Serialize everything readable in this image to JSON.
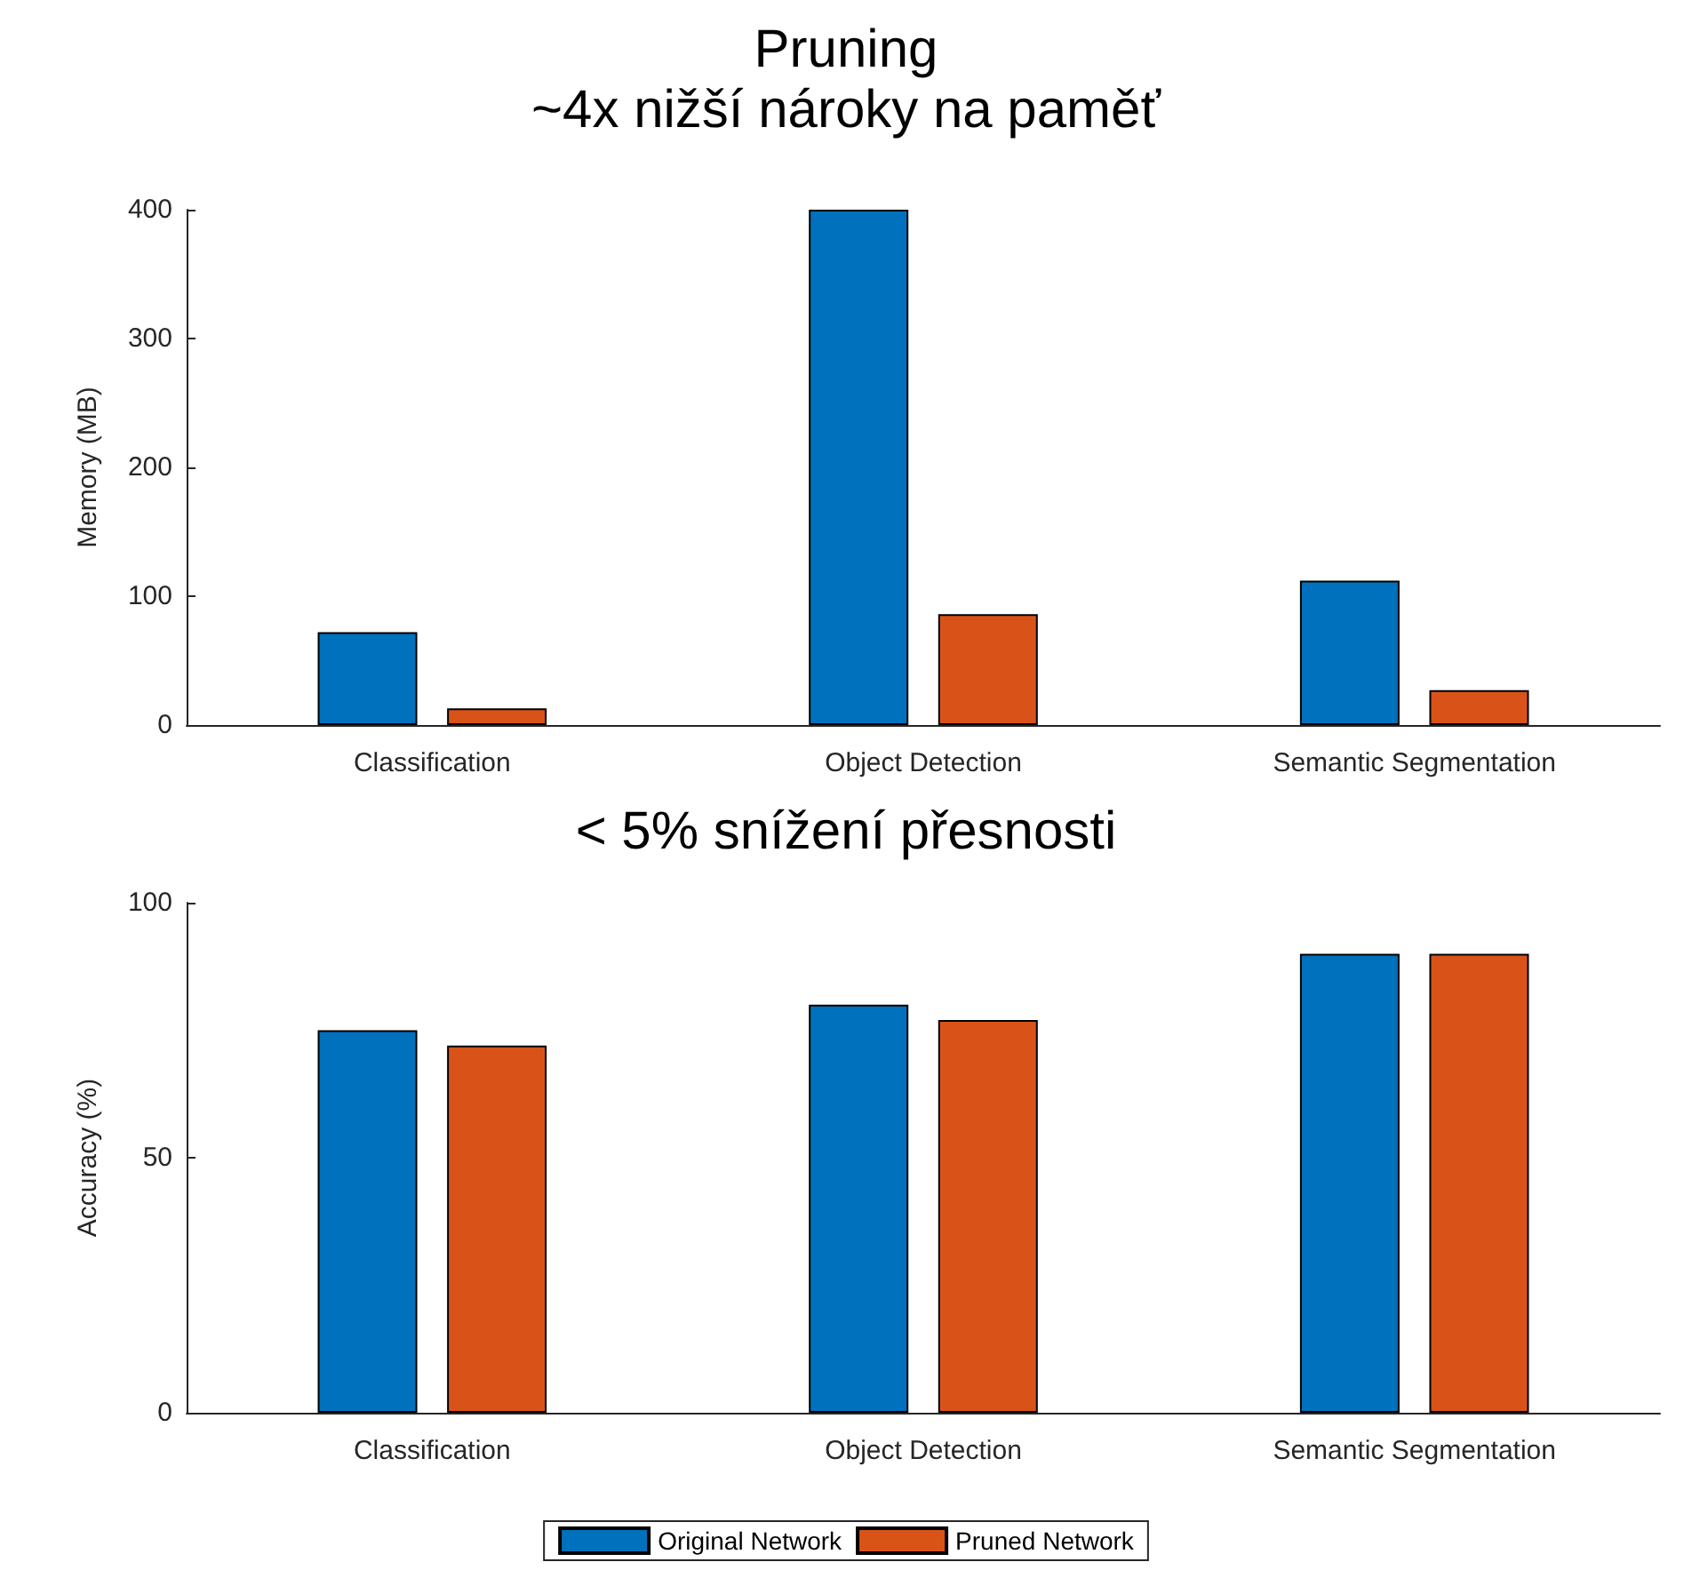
{
  "chart_data": [
    {
      "type": "bar",
      "title": "Pruning",
      "subtitle": "~4x nižší nároky na paměť",
      "ylabel": "Memory (MB)",
      "categories": [
        "Classification",
        "Object Detection",
        "Semantic Segmentation"
      ],
      "series": [
        {
          "color": "#0072bd",
          "values": [
            72,
            400,
            112
          ]
        },
        {
          "color": "#d95319",
          "values": [
            13,
            86,
            27
          ]
        }
      ],
      "ylim": [
        0,
        400
      ],
      "yticks": [
        0,
        100,
        200,
        300,
        400
      ],
      "grid": false,
      "legend": false
    },
    {
      "type": "bar",
      "title": "< 5% snížení přesnosti",
      "ylabel": "Accuracy (%)",
      "categories": [
        "Classification",
        "Object Detection",
        "Semantic Segmentation"
      ],
      "series": [
        {
          "name": "Original Network",
          "color": "#0072bd",
          "values": [
            75,
            80,
            90
          ]
        },
        {
          "name": "Pruned Network",
          "color": "#d95319",
          "values": [
            72,
            77,
            90
          ]
        }
      ],
      "ylim": [
        0,
        100
      ],
      "yticks": [
        0,
        50,
        100
      ],
      "grid": false,
      "legend": "bottom"
    }
  ]
}
